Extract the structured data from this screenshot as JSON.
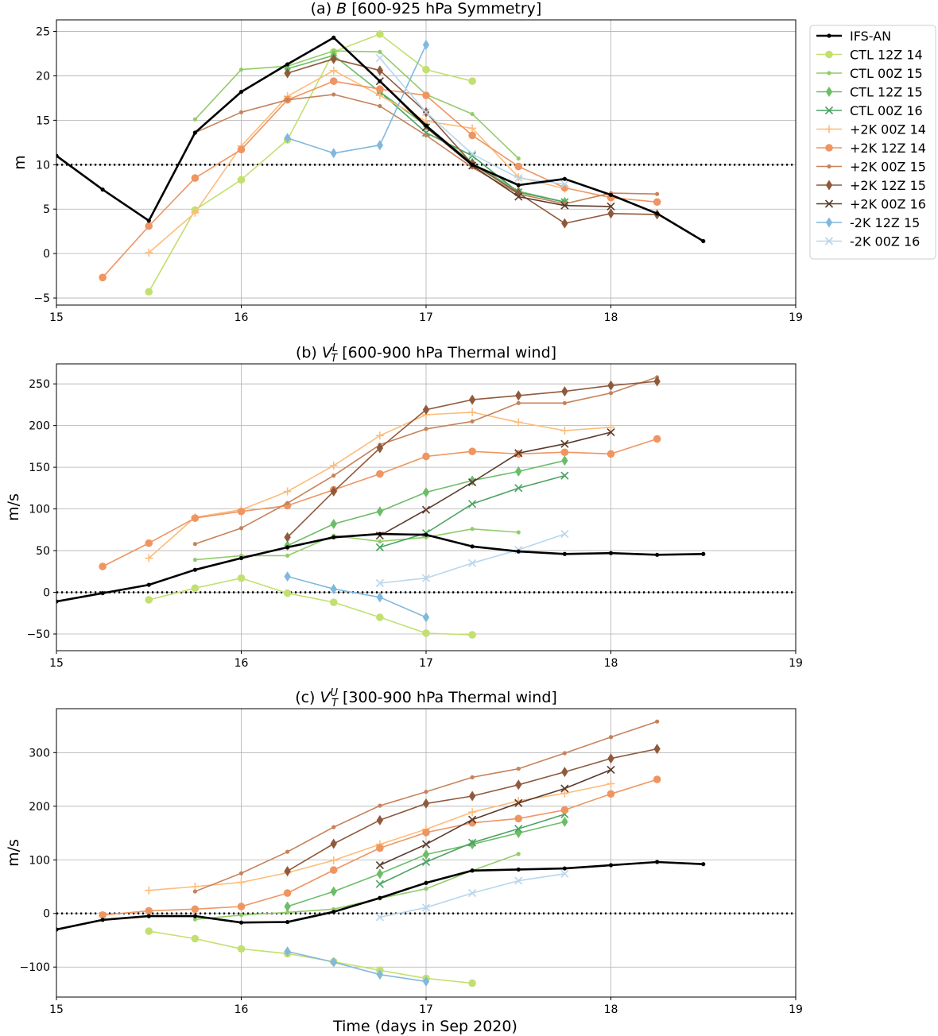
{
  "figure": {
    "xlabel": "Time (days in Sep 2020)"
  },
  "styles": {
    "IFS-AN": {
      "color": "#000000",
      "marker": "dot",
      "width": 2.6
    },
    "CTL 12Z 14": {
      "color": "#c2e06f",
      "marker": "circle",
      "width": 1.6
    },
    "CTL 00Z 15": {
      "color": "#92cc6a",
      "marker": "dot",
      "width": 1.6
    },
    "CTL 12Z 15": {
      "color": "#6cbd68",
      "marker": "diamond",
      "width": 1.6
    },
    "CTL 00Z 16": {
      "color": "#4aa362",
      "marker": "x",
      "width": 1.6
    },
    "+2K 00Z 14": {
      "color": "#fdbc79",
      "marker": "plus",
      "width": 1.6
    },
    "+2K 12Z 14": {
      "color": "#ef9562",
      "marker": "circle",
      "width": 1.6
    },
    "+2K 00Z 15": {
      "color": "#c6835b",
      "marker": "dot",
      "width": 1.6
    },
    "+2K 12Z 15": {
      "color": "#8f5a3c",
      "marker": "diamond",
      "width": 1.6
    },
    "+2K 00Z 16": {
      "color": "#5b3a2c",
      "marker": "x",
      "width": 1.6
    },
    "-2K 12Z 15": {
      "color": "#80b9dc",
      "marker": "diamond",
      "width": 1.6
    },
    "-2K 00Z 16": {
      "color": "#b9d6ec",
      "marker": "x",
      "width": 1.6
    }
  },
  "legend": {
    "placement": "outside-right",
    "entries": [
      "IFS-AN",
      "CTL 12Z 14",
      "CTL 00Z 15",
      "CTL 12Z 15",
      "CTL 00Z 16",
      "+2K 00Z 14",
      "+2K 12Z 14",
      "+2K 00Z 15",
      "+2K 12Z 15",
      "+2K 00Z 16",
      "-2K 12Z 15",
      "-2K 00Z 16"
    ]
  },
  "chart_data": [
    {
      "type": "line",
      "title": "(a) B [600-925 hPa Symmetry]",
      "ylabel": "m",
      "xlim": [
        15,
        19
      ],
      "ylim": [
        -5.8,
        26.3
      ],
      "xticks": [
        15,
        16,
        17,
        18,
        19
      ],
      "yticks": [
        -5,
        0,
        5,
        10,
        15,
        20,
        25
      ],
      "grid": true,
      "reference_line": 10,
      "series": [
        {
          "name": "IFS-AN",
          "x": [
            15,
            15.25,
            15.5,
            15.75,
            16,
            16.25,
            16.5,
            16.75,
            17,
            17.25,
            17.5,
            17.75,
            18,
            18.25,
            18.5
          ],
          "y": [
            11,
            7.2,
            3.7,
            13.6,
            18.2,
            21.3,
            24.3,
            19.4,
            14.4,
            10.0,
            7.7,
            8.4,
            6.6,
            4.5,
            1.4
          ]
        },
        {
          "name": "CTL 12Z 14",
          "x": [
            15.5,
            15.75,
            16,
            16.25,
            16.5,
            16.75,
            17,
            17.25
          ],
          "y": [
            -4.3,
            4.9,
            8.3,
            12.8,
            22.7,
            24.7,
            20.7,
            19.4
          ]
        },
        {
          "name": "CTL 00Z 15",
          "x": [
            15.75,
            16,
            16.25,
            16.5,
            16.75,
            17,
            17.25,
            17.5
          ],
          "y": [
            15.1,
            20.7,
            21.1,
            22.8,
            22.7,
            17.9,
            15.7,
            10.7
          ]
        },
        {
          "name": "CTL 12Z 15",
          "x": [
            16.25,
            16.5,
            16.75,
            17,
            17.25,
            17.5,
            17.75
          ],
          "y": [
            20.8,
            22.3,
            18.2,
            14.4,
            10.2,
            7.0,
            5.8
          ]
        },
        {
          "name": "CTL 00Z 16",
          "x": [
            16.75,
            17,
            17.25,
            17.5,
            17.75
          ],
          "y": [
            18.2,
            13.6,
            11.0,
            6.9,
            5.8
          ]
        },
        {
          "name": "+2K 00Z 14",
          "x": [
            15.5,
            15.75,
            16,
            16.25,
            16.5,
            16.75,
            17,
            17.25,
            17.5,
            17.75
          ],
          "y": [
            0.1,
            4.6,
            12.1,
            17.7,
            20.6,
            17.8,
            14.9,
            14.1,
            8.6,
            7.3
          ]
        },
        {
          "name": "+2K 12Z 14",
          "x": [
            15.25,
            15.5,
            15.75,
            16,
            16.25,
            16.5,
            16.75,
            17,
            17.25,
            17.5,
            17.75,
            18,
            18.25
          ],
          "y": [
            -2.7,
            3.1,
            8.5,
            11.7,
            17.3,
            19.4,
            18.5,
            17.8,
            13.3,
            9.8,
            7.4,
            6.3,
            5.8
          ]
        },
        {
          "name": "+2K 00Z 15",
          "x": [
            15.75,
            16,
            16.25,
            16.5,
            16.75,
            17,
            17.25,
            17.5,
            17.75,
            18,
            18.25
          ],
          "y": [
            13.6,
            15.9,
            17.3,
            17.9,
            16.6,
            13.3,
            9.7,
            6.7,
            5.6,
            6.8,
            6.7
          ]
        },
        {
          "name": "+2K 12Z 15",
          "x": [
            16.25,
            16.5,
            16.75,
            17,
            17.25,
            17.5,
            17.75,
            18,
            18.25
          ],
          "y": [
            20.3,
            21.9,
            20.6,
            15.9,
            10.1,
            6.8,
            3.4,
            4.5,
            4.4
          ]
        },
        {
          "name": "+2K 00Z 16",
          "x": [
            16.75,
            17,
            17.25,
            17.5,
            17.75,
            18
          ],
          "y": [
            19.4,
            14.2,
            9.9,
            6.4,
            5.4,
            5.3
          ]
        },
        {
          "name": "-2K 12Z 15",
          "x": [
            16.25,
            16.5,
            16.75,
            17
          ],
          "y": [
            13.0,
            11.3,
            12.2,
            23.5
          ]
        },
        {
          "name": "-2K 00Z 16",
          "x": [
            16.75,
            17,
            17.25,
            17.5,
            17.75
          ],
          "y": [
            22.0,
            15.9,
            11.2,
            8.5,
            7.8
          ]
        }
      ]
    },
    {
      "type": "line",
      "title": "(b) V_T^L [600-900 hPa Thermal wind]",
      "title_parts": {
        "prefix": "(b) ",
        "sym": "V",
        "sub": "T",
        "sup": "L",
        "suffix": " [600-900 hPa Thermal wind]"
      },
      "ylabel": "m/s",
      "xlim": [
        15,
        19
      ],
      "ylim": [
        -70,
        274
      ],
      "xticks": [
        15,
        16,
        17,
        18,
        19
      ],
      "yticks": [
        -50,
        0,
        50,
        100,
        150,
        200,
        250
      ],
      "grid": true,
      "reference_line": 0,
      "series": [
        {
          "name": "IFS-AN",
          "x": [
            15,
            15.25,
            15.5,
            15.75,
            16,
            16.25,
            16.5,
            16.75,
            17,
            17.25,
            17.5,
            17.75,
            18,
            18.25,
            18.5
          ],
          "y": [
            -11,
            -1,
            9,
            27,
            41,
            54,
            66,
            70,
            69,
            55,
            49,
            46,
            47,
            45,
            46
          ]
        },
        {
          "name": "CTL 12Z 14",
          "x": [
            15.5,
            15.75,
            16,
            16.25,
            16.5,
            16.75,
            17,
            17.25
          ],
          "y": [
            -9,
            5,
            17,
            -1,
            -12,
            -30,
            -49,
            -51
          ]
        },
        {
          "name": "CTL 00Z 15",
          "x": [
            15.75,
            16,
            16.25,
            16.5,
            16.75,
            17,
            17.25,
            17.5
          ],
          "y": [
            39,
            44,
            44,
            68,
            61,
            66,
            76,
            72
          ]
        },
        {
          "name": "CTL 12Z 15",
          "x": [
            16.25,
            16.5,
            16.75,
            17,
            17.25,
            17.5,
            17.75
          ],
          "y": [
            56,
            82,
            97,
            120,
            134,
            145,
            158
          ]
        },
        {
          "name": "CTL 00Z 16",
          "x": [
            16.75,
            17,
            17.25,
            17.5,
            17.75
          ],
          "y": [
            54,
            71,
            106,
            125,
            140
          ]
        },
        {
          "name": "+2K 00Z 14",
          "x": [
            15.5,
            15.75,
            16,
            16.25,
            16.5,
            16.75,
            17,
            17.25,
            17.5,
            17.75,
            18
          ],
          "y": [
            41,
            90,
            99,
            121,
            152,
            188,
            213,
            216,
            204,
            194,
            198
          ]
        },
        {
          "name": "+2K 12Z 14",
          "x": [
            15.25,
            15.5,
            15.75,
            16,
            16.25,
            16.5,
            16.75,
            17,
            17.25,
            17.5,
            17.75,
            18,
            18.25
          ],
          "y": [
            31,
            59,
            89,
            97,
            104,
            123,
            142,
            163,
            169,
            166,
            168,
            166,
            184
          ]
        },
        {
          "name": "+2K 00Z 15",
          "x": [
            15.75,
            16,
            16.25,
            16.5,
            16.75,
            17,
            17.25,
            17.5,
            17.75,
            18,
            18.25
          ],
          "y": [
            58,
            77,
            107,
            140,
            177,
            196,
            205,
            227,
            227,
            239,
            258
          ]
        },
        {
          "name": "+2K 12Z 15",
          "x": [
            16.25,
            16.5,
            16.75,
            17,
            17.25,
            17.5,
            17.75,
            18,
            18.25
          ],
          "y": [
            66,
            121,
            173,
            219,
            231,
            236,
            241,
            248,
            253
          ]
        },
        {
          "name": "+2K 00Z 16",
          "x": [
            16.75,
            17,
            17.25,
            17.5,
            17.75,
            18
          ],
          "y": [
            68,
            99,
            132,
            167,
            178,
            192
          ]
        },
        {
          "name": "-2K 12Z 15",
          "x": [
            16.25,
            16.5,
            16.75,
            17
          ],
          "y": [
            19,
            4,
            -6,
            -30
          ]
        },
        {
          "name": "-2K 00Z 16",
          "x": [
            16.75,
            17,
            17.25,
            17.5,
            17.75
          ],
          "y": [
            11,
            17,
            35,
            51,
            70
          ]
        }
      ]
    },
    {
      "type": "line",
      "title": "(c) V_T^U [300-900 hPa Thermal wind]",
      "title_parts": {
        "prefix": "(c) ",
        "sym": "V",
        "sub": "T",
        "sup": "U",
        "suffix": " [300-900 hPa Thermal wind]"
      },
      "ylabel": "m/s",
      "xlim": [
        15,
        19
      ],
      "ylim": [
        -156,
        382
      ],
      "xticks": [
        15,
        16,
        17,
        18,
        19
      ],
      "yticks": [
        -100,
        0,
        100,
        200,
        300
      ],
      "grid": true,
      "reference_line": 0,
      "series": [
        {
          "name": "IFS-AN",
          "x": [
            15,
            15.25,
            15.5,
            15.75,
            16,
            16.25,
            16.5,
            16.75,
            17,
            17.25,
            17.5,
            17.75,
            18,
            18.25,
            18.5
          ],
          "y": [
            -30,
            -12,
            -5,
            -5,
            -17,
            -16,
            3,
            29,
            57,
            80,
            82,
            84,
            90,
            96,
            92
          ]
        },
        {
          "name": "CTL 12Z 14",
          "x": [
            15.5,
            15.75,
            16,
            16.25,
            16.5,
            16.75,
            17,
            17.25
          ],
          "y": [
            -33,
            -47,
            -66,
            -75,
            -90,
            -106,
            -121,
            -130
          ]
        },
        {
          "name": "CTL 00Z 15",
          "x": [
            15.75,
            16,
            16.25,
            16.5,
            16.75,
            17,
            17.25,
            17.5
          ],
          "y": [
            -11,
            -3,
            2,
            8,
            28,
            46,
            80,
            111
          ]
        },
        {
          "name": "CTL 12Z 15",
          "x": [
            16.25,
            16.5,
            16.75,
            17,
            17.25,
            17.5,
            17.75
          ],
          "y": [
            13,
            41,
            74,
            110,
            129,
            150,
            171
          ]
        },
        {
          "name": "CTL 00Z 16",
          "x": [
            16.75,
            17,
            17.25,
            17.5,
            17.75
          ],
          "y": [
            55,
            96,
            132,
            158,
            185
          ]
        },
        {
          "name": "+2K 00Z 14",
          "x": [
            15.5,
            15.75,
            16,
            16.25,
            16.5,
            16.75,
            17,
            17.25,
            17.5,
            17.75,
            18
          ],
          "y": [
            43,
            50,
            58,
            76,
            99,
            129,
            157,
            189,
            210,
            224,
            242
          ]
        },
        {
          "name": "+2K 12Z 14",
          "x": [
            15.25,
            15.5,
            15.75,
            16,
            16.25,
            16.5,
            16.75,
            17,
            17.25,
            17.5,
            17.75,
            18,
            18.25
          ],
          "y": [
            -3,
            5,
            8,
            13,
            38,
            81,
            122,
            151,
            169,
            177,
            193,
            223,
            250
          ]
        },
        {
          "name": "+2K 00Z 15",
          "x": [
            15.75,
            16,
            16.25,
            16.5,
            16.75,
            17,
            17.25,
            17.5,
            17.75,
            18,
            18.25
          ],
          "y": [
            41,
            75,
            115,
            161,
            201,
            227,
            254,
            270,
            299,
            329,
            358
          ]
        },
        {
          "name": "+2K 12Z 15",
          "x": [
            16.25,
            16.5,
            16.75,
            17,
            17.25,
            17.5,
            17.75,
            18,
            18.25
          ],
          "y": [
            79,
            130,
            174,
            205,
            219,
            240,
            264,
            289,
            307
          ]
        },
        {
          "name": "+2K 00Z 16",
          "x": [
            16.75,
            17,
            17.25,
            17.5,
            17.75,
            18
          ],
          "y": [
            90,
            129,
            175,
            206,
            233,
            268
          ]
        },
        {
          "name": "-2K 12Z 15",
          "x": [
            16.25,
            16.5,
            16.75,
            17
          ],
          "y": [
            -71,
            -91,
            -114,
            -127
          ]
        },
        {
          "name": "-2K 00Z 16",
          "x": [
            16.75,
            17,
            17.25,
            17.5,
            17.75
          ],
          "y": [
            -7,
            11,
            38,
            61,
            74
          ]
        }
      ]
    }
  ]
}
